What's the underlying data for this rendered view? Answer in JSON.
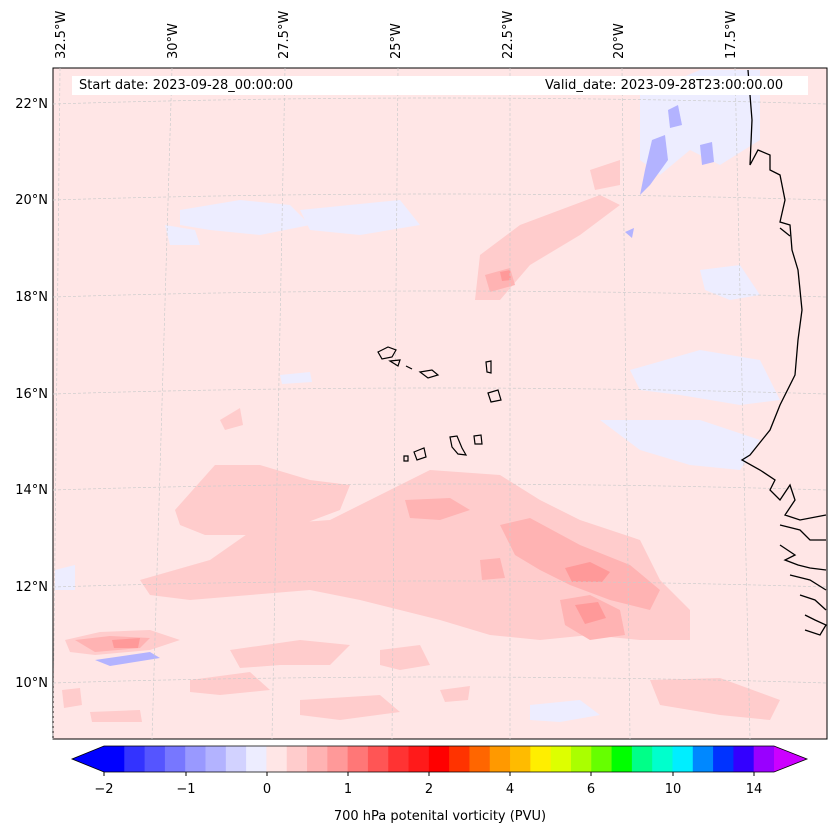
{
  "header": {
    "start_date": "Start date: 2023-09-28_00:00:00",
    "valid_date": "Valid_date: 2023-09-28T23:00:00.00"
  },
  "longitude_labels": [
    "32.5°W",
    "30°W",
    "27.5°W",
    "25°W",
    "22.5°W",
    "20°W",
    "17.5°W"
  ],
  "latitude_labels": [
    "22°N",
    "20°N",
    "18°N",
    "16°N",
    "14°N",
    "12°N",
    "10°N"
  ],
  "map": {
    "field": "700 hPa potential vorticity",
    "background_color": "#ffe6e6",
    "coastline_color": "#000000",
    "gridline_color": "#cccccc"
  },
  "colorbar": {
    "title": "700 hPa potenital vorticity (PVU)",
    "tick_labels": [
      "−2",
      "−1",
      "0",
      "1",
      "2",
      "4",
      "6",
      "10",
      "14"
    ],
    "colors": [
      "#0000ff",
      "#3333ff",
      "#5555ff",
      "#7777ff",
      "#9999ff",
      "#b3b3ff",
      "#d2d2ff",
      "#ededff",
      "#ffe6e6",
      "#ffcccc",
      "#ffb3b3",
      "#ff9999",
      "#ff7777",
      "#ff5555",
      "#ff3333",
      "#ff1a1a",
      "#ff0000",
      "#ff3300",
      "#ff6600",
      "#ff9900",
      "#ffbb00",
      "#ffee00",
      "#ddff00",
      "#aaff00",
      "#66ff00",
      "#00ff00",
      "#00ff88",
      "#00ffcc",
      "#00eeff",
      "#0088ff",
      "#0033ff",
      "#3300ff",
      "#9900ff"
    ],
    "extend_min_color": "#0000ff",
    "extend_max_color": "#cc00ff"
  }
}
